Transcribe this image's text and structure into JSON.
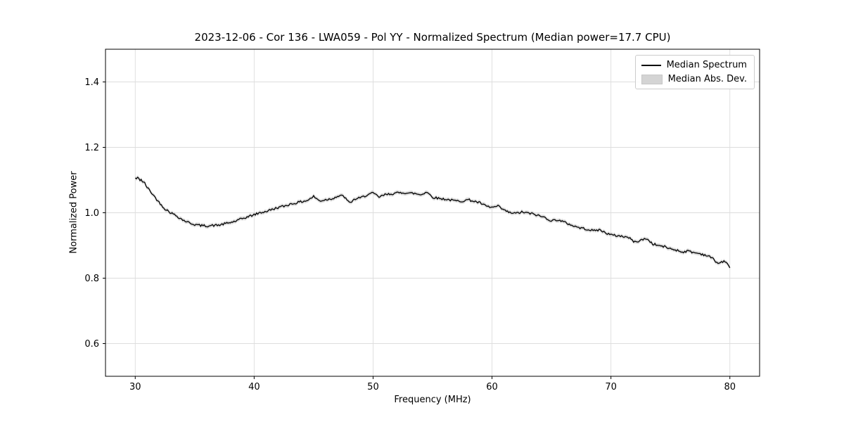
{
  "chart_data": {
    "type": "line",
    "title": "2023-12-06 - Cor 136 - LWA059 - Pol YY - Normalized Spectrum (Median power=17.7 CPU)",
    "xlabel": "Frequency (MHz)",
    "ylabel": "Normalized Power",
    "xlim": [
      27.5,
      82.5
    ],
    "ylim": [
      0.5,
      1.5
    ],
    "xticks": [
      30,
      40,
      50,
      60,
      70,
      80
    ],
    "yticks": [
      0.6,
      0.8,
      1.0,
      1.2,
      1.4
    ],
    "grid": true,
    "grid_color": "#dddddd",
    "line_color": "#000000",
    "band_color": "#cfcfcf",
    "legend_position": "upper right",
    "legend": [
      {
        "label": "Median Spectrum",
        "type": "line"
      },
      {
        "label": "Median Abs. Dev.",
        "type": "patch"
      }
    ],
    "series": [
      {
        "name": "Median Spectrum",
        "x_start": 30.0,
        "x_step": 0.5,
        "values": [
          1.105,
          1.102,
          1.078,
          1.055,
          1.032,
          1.012,
          1.0,
          0.99,
          0.978,
          0.97,
          0.964,
          0.961,
          0.96,
          0.961,
          0.962,
          0.966,
          0.97,
          0.975,
          0.982,
          0.988,
          0.994,
          1.0,
          1.004,
          1.01,
          1.016,
          1.02,
          1.026,
          1.03,
          1.034,
          1.038,
          1.05,
          1.036,
          1.04,
          1.043,
          1.05,
          1.052,
          1.03,
          1.042,
          1.046,
          1.055,
          1.06,
          1.048,
          1.055,
          1.058,
          1.06,
          1.062,
          1.06,
          1.059,
          1.055,
          1.064,
          1.048,
          1.044,
          1.042,
          1.039,
          1.036,
          1.036,
          1.04,
          1.035,
          1.03,
          1.02,
          1.016,
          1.02,
          1.008,
          1.0,
          0.998,
          1.002,
          0.999,
          0.996,
          0.99,
          0.985,
          0.975,
          0.979,
          0.972,
          0.965,
          0.958,
          0.953,
          0.95,
          0.945,
          0.948,
          0.94,
          0.932,
          0.93,
          0.928,
          0.924,
          0.91,
          0.916,
          0.921,
          0.905,
          0.9,
          0.896,
          0.89,
          0.886,
          0.88,
          0.883,
          0.878,
          0.875,
          0.87,
          0.862,
          0.845,
          0.852,
          0.835
        ],
        "mad_halfwidth": 0.006
      }
    ],
    "noise": {
      "amplitude": 0.0035,
      "seed": 42,
      "sample_step_mhz": 0.1
    }
  }
}
